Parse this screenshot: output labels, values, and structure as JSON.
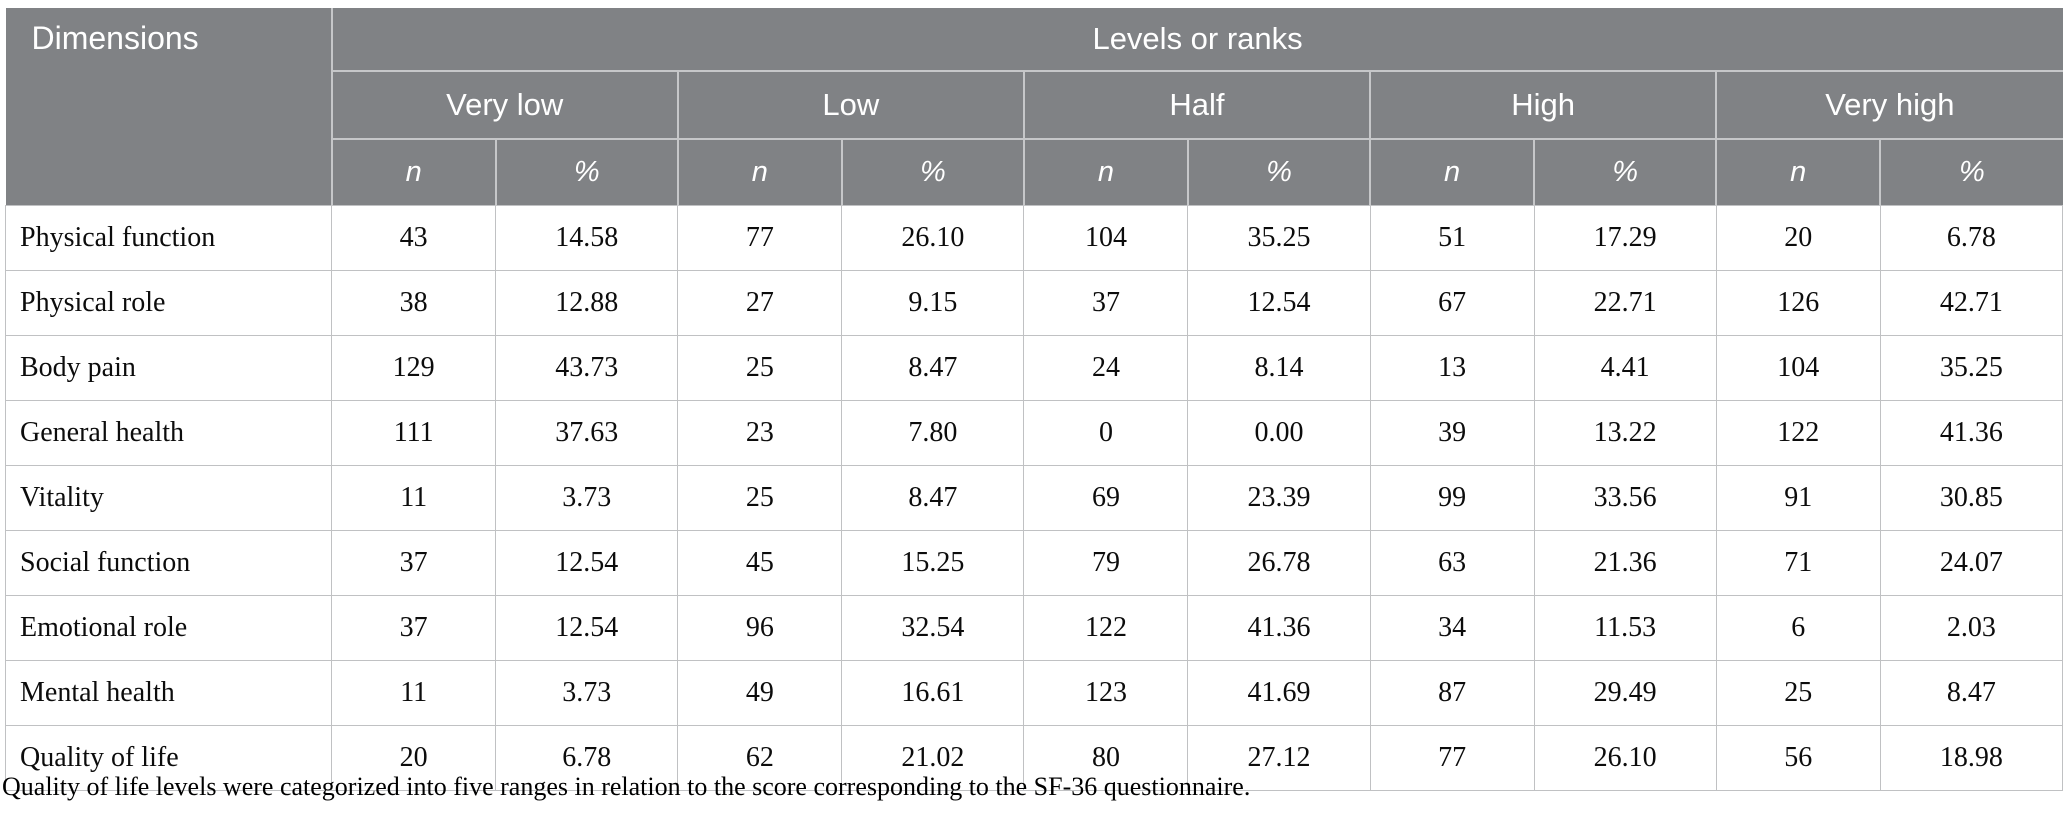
{
  "table": {
    "header": {
      "dimensions_label": "Dimensions",
      "levels_label": "Levels or ranks",
      "groups": [
        "Very low",
        "Low",
        "Half",
        "High",
        "Very high"
      ],
      "sub_n": "n",
      "sub_pct": "%"
    },
    "rows": [
      {
        "dimension": "Physical function",
        "values": [
          "43",
          "14.58",
          "77",
          "26.10",
          "104",
          "35.25",
          "51",
          "17.29",
          "20",
          "6.78"
        ]
      },
      {
        "dimension": "Physical role",
        "values": [
          "38",
          "12.88",
          "27",
          "9.15",
          "37",
          "12.54",
          "67",
          "22.71",
          "126",
          "42.71"
        ]
      },
      {
        "dimension": "Body pain",
        "values": [
          "129",
          "43.73",
          "25",
          "8.47",
          "24",
          "8.14",
          "13",
          "4.41",
          "104",
          "35.25"
        ]
      },
      {
        "dimension": "General health",
        "values": [
          "111",
          "37.63",
          "23",
          "7.80",
          "0",
          "0.00",
          "39",
          "13.22",
          "122",
          "41.36"
        ]
      },
      {
        "dimension": "Vitality",
        "values": [
          "11",
          "3.73",
          "25",
          "8.47",
          "69",
          "23.39",
          "99",
          "33.56",
          "91",
          "30.85"
        ]
      },
      {
        "dimension": "Social function",
        "values": [
          "37",
          "12.54",
          "45",
          "15.25",
          "79",
          "26.78",
          "63",
          "21.36",
          "71",
          "24.07"
        ]
      },
      {
        "dimension": "Emotional role",
        "values": [
          "37",
          "12.54",
          "96",
          "32.54",
          "122",
          "41.36",
          "34",
          "11.53",
          "6",
          "2.03"
        ]
      },
      {
        "dimension": "Mental health",
        "values": [
          "11",
          "3.73",
          "49",
          "16.61",
          "123",
          "41.69",
          "87",
          "29.49",
          "25",
          "8.47"
        ]
      },
      {
        "dimension": "Quality of life",
        "values": [
          "20",
          "6.78",
          "62",
          "21.02",
          "80",
          "27.12",
          "77",
          "26.10",
          "56",
          "18.98"
        ]
      }
    ],
    "footnote": "Quality of life levels were categorized into five ranges in relation to the score corresponding to the SF-36 questionnaire."
  },
  "colors": {
    "header_bg": "#808285",
    "header_text": "#ffffff",
    "header_line": "#c6c7c9",
    "body_line": "#c0c1c3",
    "body_text": "#0c0c0c"
  }
}
